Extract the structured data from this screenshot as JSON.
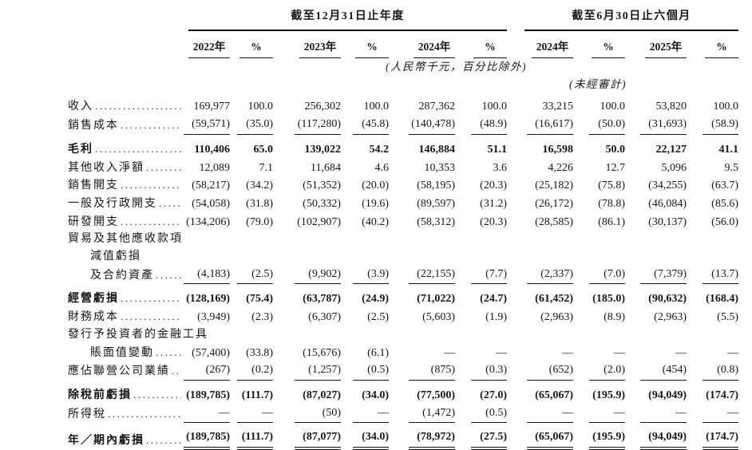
{
  "header": {
    "annual": {
      "title": "截至12月31日止年度",
      "cols": [
        "2022年",
        "%",
        "2023年",
        "%",
        "2024年",
        "%"
      ]
    },
    "interim": {
      "title": "截至6月30日止六個月",
      "cols": [
        "2024年",
        "%",
        "2025年",
        "%"
      ]
    }
  },
  "notes": {
    "currency": "(人民幣千元，百分比除外)",
    "unaudited": "(未經審計)"
  },
  "rows": [
    {
      "lines": [
        {
          "text": "收入",
          "indent": 0
        }
      ],
      "dots": true,
      "bold": false,
      "rule": "none",
      "values": [
        "169,977",
        "100.0",
        "256,302",
        "100.0",
        "287,362",
        "100.0",
        "33,215",
        "100.0",
        "53,820",
        "100.0"
      ]
    },
    {
      "lines": [
        {
          "text": "銷售成本",
          "indent": 0
        }
      ],
      "dots": true,
      "bold": false,
      "rule": "single",
      "values": [
        "(59,571)",
        "(35.0)",
        "(117,280)",
        "(45.8)",
        "(140,478)",
        "(48.9)",
        "(16,617)",
        "(50.0)",
        "(31,693)",
        "(58.9)"
      ]
    },
    {
      "lines": [
        {
          "text": "毛利",
          "indent": 0
        }
      ],
      "dots": true,
      "bold": true,
      "subtotal": true,
      "rule": "none",
      "values": [
        "110,406",
        "65.0",
        "139,022",
        "54.2",
        "146,884",
        "51.1",
        "16,598",
        "50.0",
        "22,127",
        "41.1"
      ]
    },
    {
      "lines": [
        {
          "text": "其他收入淨額",
          "indent": 0
        }
      ],
      "dots": true,
      "bold": false,
      "rule": "none",
      "values": [
        "12,089",
        "7.1",
        "11,684",
        "4.6",
        "10,353",
        "3.6",
        "4,226",
        "12.7",
        "5,096",
        "9.5"
      ]
    },
    {
      "lines": [
        {
          "text": "銷售開支",
          "indent": 0
        }
      ],
      "dots": true,
      "bold": false,
      "rule": "none",
      "values": [
        "(58,217)",
        "(34.2)",
        "(51,352)",
        "(20.0)",
        "(58,195)",
        "(20.3)",
        "(25,182)",
        "(75.8)",
        "(34,255)",
        "(63.7)"
      ]
    },
    {
      "lines": [
        {
          "text": "一般及行政開支",
          "indent": 0
        }
      ],
      "dots": true,
      "bold": false,
      "rule": "none",
      "values": [
        "(54,058)",
        "(31.8)",
        "(50,332)",
        "(19.6)",
        "(89,597)",
        "(31.2)",
        "(26,172)",
        "(78.8)",
        "(46,084)",
        "(85.6)"
      ]
    },
    {
      "lines": [
        {
          "text": "研發開支",
          "indent": 0
        }
      ],
      "dots": true,
      "bold": false,
      "rule": "none",
      "values": [
        "(134,206)",
        "(79.0)",
        "(102,907)",
        "(40.2)",
        "(58,312)",
        "(20.3)",
        "(28,585)",
        "(86.1)",
        "(30,137)",
        "(56.0)"
      ]
    },
    {
      "lines": [
        {
          "text": "貿易及其他應收款項",
          "indent": 0
        },
        {
          "text": "減值虧損",
          "indent": 1
        },
        {
          "text": "及合約資產",
          "indent": 1
        }
      ],
      "dots": true,
      "bold": false,
      "rule": "single",
      "values": [
        "(4,183)",
        "(2.5)",
        "(9,902)",
        "(3.9)",
        "(22,155)",
        "(7.7)",
        "(2,337)",
        "(7.0)",
        "(7,379)",
        "(13.7)"
      ]
    },
    {
      "lines": [
        {
          "text": "經營虧損",
          "indent": 0
        }
      ],
      "dots": true,
      "bold": true,
      "subtotal": true,
      "rule": "none",
      "values": [
        "(128,169)",
        "(75.4)",
        "(63,787)",
        "(24.9)",
        "(71,022)",
        "(24.7)",
        "(61,452)",
        "(185.0)",
        "(90,632)",
        "(168.4)"
      ]
    },
    {
      "lines": [
        {
          "text": "財務成本",
          "indent": 0
        }
      ],
      "dots": true,
      "bold": false,
      "rule": "none",
      "values": [
        "(3,949)",
        "(2.3)",
        "(6,307)",
        "(2.5)",
        "(5,603)",
        "(1.9)",
        "(2,963)",
        "(8.9)",
        "(2,963)",
        "(5.5)"
      ]
    },
    {
      "lines": [
        {
          "text": "發行予投資者的金融工具",
          "indent": 0
        },
        {
          "text": "賬面值變動",
          "indent": 1
        }
      ],
      "dots": true,
      "bold": false,
      "rule": "none",
      "values": [
        "(57,400)",
        "(33.8)",
        "(15,676)",
        "(6.1)",
        "—",
        "—",
        "—",
        "—",
        "—",
        "—"
      ]
    },
    {
      "lines": [
        {
          "text": "應佔聯營公司業績",
          "indent": 0
        }
      ],
      "dots": true,
      "bold": false,
      "rule": "single",
      "values": [
        "(267)",
        "(0.2)",
        "(1,257)",
        "(0.5)",
        "(875)",
        "(0.3)",
        "(652)",
        "(2.0)",
        "(454)",
        "(0.8)"
      ]
    },
    {
      "lines": [
        {
          "text": "除稅前虧損",
          "indent": 0
        }
      ],
      "dots": true,
      "bold": true,
      "subtotal": true,
      "rule": "none",
      "values": [
        "(189,785)",
        "(111.7)",
        "(87,027)",
        "(34.0)",
        "(77,500)",
        "(27.0)",
        "(65,067)",
        "(195.9)",
        "(94,049)",
        "(174.7)"
      ]
    },
    {
      "lines": [
        {
          "text": "所得稅",
          "indent": 0
        }
      ],
      "dots": true,
      "bold": false,
      "rule": "single",
      "values": [
        "—",
        "—",
        "(50)",
        "—",
        "(1,472)",
        "(0.5)",
        "—",
        "—",
        "—",
        "—"
      ]
    },
    {
      "lines": [
        {
          "text": "年／期內虧損",
          "indent": 0
        }
      ],
      "dots": true,
      "bold": true,
      "subtotal": true,
      "rule": "double",
      "values": [
        "(189,785)",
        "(111.7)",
        "(87,077)",
        "(34.0)",
        "(78,972)",
        "(27.5)",
        "(65,067)",
        "(195.9)",
        "(94,049)",
        "(174.7)"
      ]
    }
  ]
}
